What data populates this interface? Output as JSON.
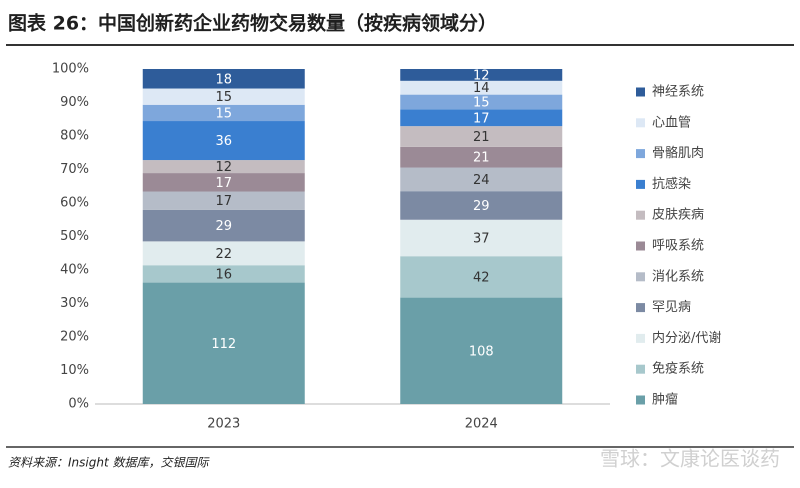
{
  "header": {
    "title": "图表 26：中国创新药企业药物交易数量（按疾病领域分）"
  },
  "chart_data": {
    "type": "bar",
    "stacking": "percent",
    "categories": [
      "2023",
      "2024"
    ],
    "series": [
      {
        "name": "肿瘤",
        "color": "#6a9fa8",
        "values": [
          112,
          108
        ]
      },
      {
        "name": "免疫系统",
        "color": "#a7c8cc",
        "values": [
          16,
          42
        ]
      },
      {
        "name": "内分泌/代谢",
        "color": "#e1ecee",
        "values": [
          22,
          37
        ]
      },
      {
        "name": "罕见病",
        "color": "#7c8aa3",
        "values": [
          29,
          29
        ]
      },
      {
        "name": "消化系统",
        "color": "#b5bcc8",
        "values": [
          17,
          24
        ]
      },
      {
        "name": "呼吸系统",
        "color": "#9b8a96",
        "values": [
          17,
          21
        ]
      },
      {
        "name": "皮肤疾病",
        "color": "#c4bcc0",
        "values": [
          12,
          21
        ]
      },
      {
        "name": "抗感染",
        "color": "#3a7fd0",
        "values": [
          36,
          17
        ]
      },
      {
        "name": "骨骼肌肉",
        "color": "#7ea7dc",
        "values": [
          15,
          15
        ]
      },
      {
        "name": "心血管",
        "color": "#dde8f5",
        "values": [
          15,
          14
        ]
      },
      {
        "name": "神经系统",
        "color": "#2e5c9a",
        "values": [
          18,
          12
        ]
      }
    ],
    "ylim": [
      0,
      100
    ],
    "yticks": [
      {
        "value": 0,
        "label": "0%"
      },
      {
        "value": 10,
        "label": "10%"
      },
      {
        "value": 20,
        "label": "20%"
      },
      {
        "value": 30,
        "label": "30%"
      },
      {
        "value": 40,
        "label": "40%"
      },
      {
        "value": 50,
        "label": "50%"
      },
      {
        "value": 60,
        "label": "60%"
      },
      {
        "value": 70,
        "label": "70%"
      },
      {
        "value": 80,
        "label": "80%"
      },
      {
        "value": 90,
        "label": "90%"
      },
      {
        "value": 100,
        "label": "100%"
      }
    ],
    "legend": "right"
  },
  "footer": {
    "source": "资料来源：Insight 数据库，交银国际",
    "watermark": "雪球：文康论医谈药"
  }
}
